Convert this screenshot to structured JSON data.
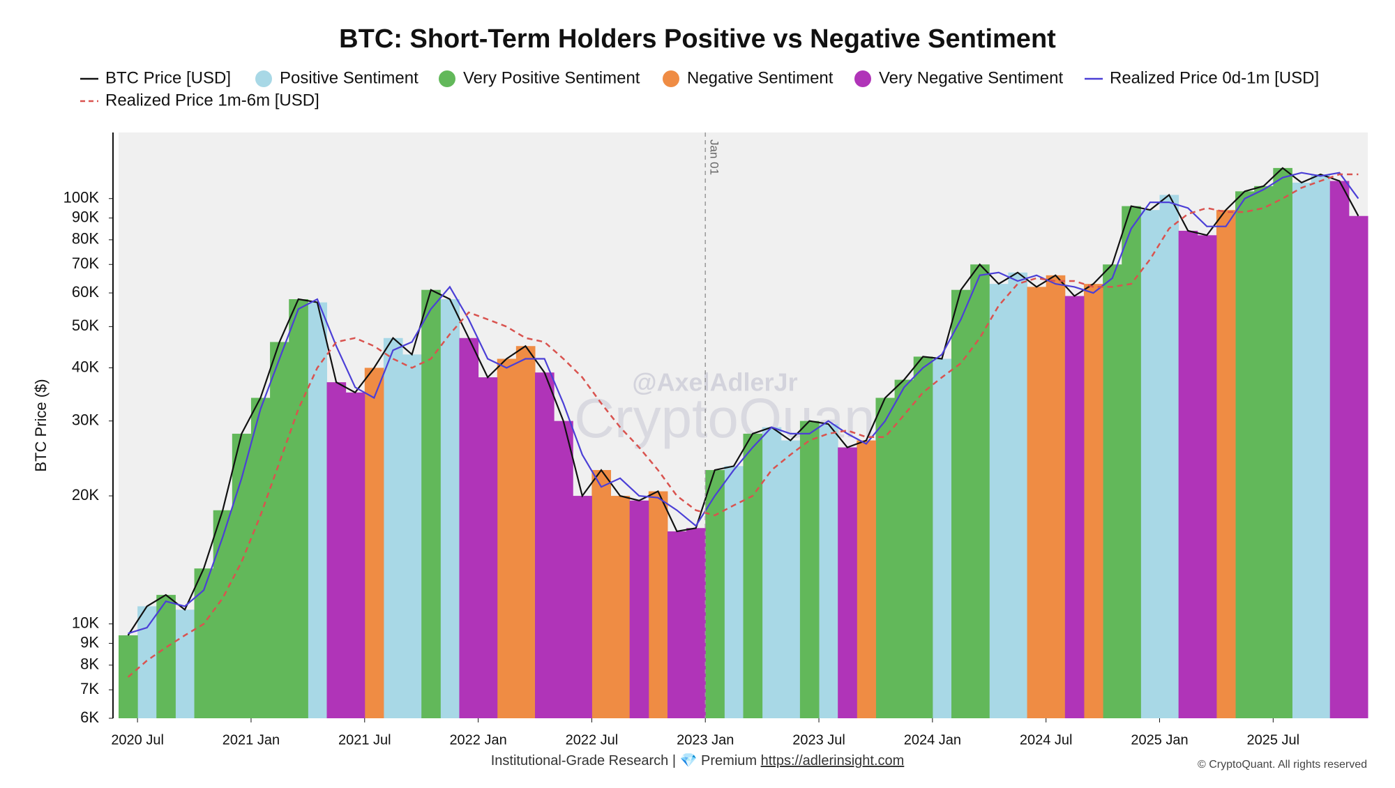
{
  "chart_data": {
    "type": "combo",
    "title": "BTC: Short-Term Holders Positive vs Negative Sentiment",
    "y_label": "BTC Price ($)",
    "log_y": true,
    "x": [
      "2020-06",
      "2020-07",
      "2020-08",
      "2020-09",
      "2020-10",
      "2020-11",
      "2020-12",
      "2021-01",
      "2021-02",
      "2021-03",
      "2021-04",
      "2021-05",
      "2021-06",
      "2021-07",
      "2021-08",
      "2021-09",
      "2021-10",
      "2021-11",
      "2021-12",
      "2022-01",
      "2022-02",
      "2022-03",
      "2022-04",
      "2022-05",
      "2022-06",
      "2022-07",
      "2022-08",
      "2022-09",
      "2022-10",
      "2022-11",
      "2022-12",
      "2023-01",
      "2023-02",
      "2023-03",
      "2023-04",
      "2023-05",
      "2023-06",
      "2023-07",
      "2023-08",
      "2023-09",
      "2023-10",
      "2023-11",
      "2023-12",
      "2024-01",
      "2024-02",
      "2024-03",
      "2024-04",
      "2024-05",
      "2024-06",
      "2024-07",
      "2024-08",
      "2024-09",
      "2024-10",
      "2024-11",
      "2024-12",
      "2025-01",
      "2025-02",
      "2025-03",
      "2025-04",
      "2025-05",
      "2025-06",
      "2025-07",
      "2025-08",
      "2025-09",
      "2025-10",
      "2025-11"
    ],
    "xlim": [
      "2020-06",
      "2025-12"
    ],
    "xticks": [
      {
        "value": "2020-07",
        "label": "2020 Jul"
      },
      {
        "value": "2021-01",
        "label": "2021 Jan"
      },
      {
        "value": "2021-07",
        "label": "2021 Jul"
      },
      {
        "value": "2022-01",
        "label": "2022 Jan"
      },
      {
        "value": "2022-07",
        "label": "2022 Jul"
      },
      {
        "value": "2023-01",
        "label": "2023 Jan"
      },
      {
        "value": "2023-07",
        "label": "2023 Jul"
      },
      {
        "value": "2024-01",
        "label": "2024 Jan"
      },
      {
        "value": "2024-07",
        "label": "2024 Jul"
      },
      {
        "value": "2025-01",
        "label": "2025 Jan"
      },
      {
        "value": "2025-07",
        "label": "2025 Jul"
      }
    ],
    "ylim": [
      6000,
      143000
    ],
    "yticks": [
      {
        "value": 6000,
        "label": "6K"
      },
      {
        "value": 7000,
        "label": "7K"
      },
      {
        "value": 8000,
        "label": "8K"
      },
      {
        "value": 9000,
        "label": "9K"
      },
      {
        "value": 10000,
        "label": "10K"
      },
      {
        "value": 20000,
        "label": "20K"
      },
      {
        "value": 30000,
        "label": "30K"
      },
      {
        "value": 40000,
        "label": "40K"
      },
      {
        "value": 50000,
        "label": "50K"
      },
      {
        "value": 60000,
        "label": "60K"
      },
      {
        "value": 70000,
        "label": "70K"
      },
      {
        "value": 80000,
        "label": "80K"
      },
      {
        "value": 90000,
        "label": "90K"
      },
      {
        "value": 100000,
        "label": "100K"
      }
    ],
    "annotations": [
      {
        "x": "2023-01",
        "label": "Jan 01"
      }
    ],
    "series": [
      {
        "name": "BTC Price [USD]",
        "type": "line",
        "color": "#111111",
        "values": [
          9400,
          11000,
          11700,
          10800,
          13500,
          18500,
          28000,
          34000,
          46000,
          58000,
          57000,
          37000,
          35000,
          40000,
          47000,
          43000,
          61000,
          58000,
          47000,
          38000,
          42000,
          45000,
          39000,
          30000,
          20000,
          23000,
          20000,
          19500,
          20500,
          16500,
          16800,
          23000,
          23500,
          28000,
          29000,
          27000,
          30000,
          29500,
          26000,
          27000,
          34000,
          37500,
          42500,
          42000,
          61000,
          70000,
          63000,
          67000,
          62000,
          66000,
          59000,
          63000,
          70000,
          96000,
          94000,
          102000,
          84000,
          82000,
          94000,
          104000,
          107000,
          118000,
          109000,
          114000,
          110000,
          91000
        ]
      },
      {
        "name": "Positive Sentiment",
        "type": "bar",
        "color": "#a8d8e6",
        "values": [
          null,
          11000,
          null,
          10800,
          null,
          null,
          null,
          null,
          null,
          null,
          57000,
          null,
          null,
          null,
          47000,
          43000,
          null,
          58000,
          null,
          null,
          null,
          null,
          null,
          null,
          null,
          null,
          null,
          null,
          null,
          null,
          null,
          null,
          23500,
          null,
          29000,
          27000,
          null,
          29500,
          null,
          null,
          null,
          null,
          null,
          42000,
          null,
          null,
          63000,
          67000,
          null,
          null,
          null,
          null,
          null,
          null,
          94000,
          102000,
          null,
          null,
          null,
          null,
          null,
          null,
          109000,
          114000,
          null,
          null
        ]
      },
      {
        "name": "Very Positive Sentiment",
        "type": "bar",
        "color": "#62b85a",
        "values": [
          9400,
          null,
          11700,
          null,
          13500,
          18500,
          28000,
          34000,
          46000,
          58000,
          null,
          null,
          null,
          null,
          null,
          null,
          61000,
          null,
          null,
          null,
          null,
          null,
          null,
          null,
          null,
          null,
          null,
          null,
          null,
          null,
          null,
          23000,
          null,
          28000,
          null,
          null,
          30000,
          null,
          null,
          null,
          34000,
          37500,
          42500,
          null,
          61000,
          70000,
          null,
          null,
          null,
          null,
          null,
          null,
          70000,
          96000,
          null,
          null,
          null,
          null,
          null,
          104000,
          107000,
          118000,
          null,
          null,
          null,
          null
        ]
      },
      {
        "name": "Negative Sentiment",
        "type": "bar",
        "color": "#ef8c44",
        "values": [
          null,
          null,
          null,
          null,
          null,
          null,
          null,
          null,
          null,
          null,
          null,
          null,
          null,
          40000,
          null,
          null,
          null,
          null,
          null,
          null,
          42000,
          45000,
          null,
          null,
          null,
          23000,
          20000,
          null,
          20500,
          null,
          null,
          null,
          null,
          null,
          null,
          null,
          null,
          null,
          null,
          27000,
          null,
          null,
          null,
          null,
          null,
          null,
          null,
          null,
          62000,
          66000,
          null,
          63000,
          null,
          null,
          null,
          null,
          null,
          null,
          94000,
          null,
          null,
          null,
          null,
          null,
          null,
          null
        ]
      },
      {
        "name": "Very Negative Sentiment",
        "type": "bar",
        "color": "#b034b8",
        "values": [
          null,
          null,
          null,
          null,
          null,
          null,
          null,
          null,
          null,
          null,
          null,
          37000,
          35000,
          null,
          null,
          null,
          null,
          null,
          47000,
          38000,
          null,
          null,
          39000,
          30000,
          20000,
          null,
          null,
          19500,
          null,
          16500,
          16800,
          null,
          null,
          null,
          null,
          null,
          null,
          null,
          26000,
          null,
          null,
          null,
          null,
          null,
          null,
          null,
          null,
          null,
          null,
          null,
          59000,
          null,
          null,
          null,
          null,
          null,
          84000,
          82000,
          null,
          null,
          null,
          null,
          null,
          null,
          110000,
          91000
        ]
      },
      {
        "name": "Realized Price 0d-1m [USD]",
        "type": "line",
        "color": "#4b3fd6",
        "values": [
          9500,
          9800,
          11300,
          11000,
          12000,
          16000,
          22000,
          32000,
          42000,
          55000,
          58000,
          45000,
          36000,
          34000,
          44000,
          46000,
          55000,
          62000,
          52000,
          42000,
          40000,
          42000,
          42000,
          33000,
          25000,
          21000,
          22000,
          20000,
          19800,
          18500,
          17000,
          20000,
          23000,
          26000,
          29000,
          28000,
          28000,
          30000,
          28000,
          26500,
          30000,
          36000,
          40000,
          43000,
          52000,
          66000,
          67000,
          64000,
          66000,
          63000,
          62000,
          60000,
          65000,
          85000,
          98000,
          98000,
          95000,
          86000,
          86000,
          100000,
          105000,
          112000,
          115000,
          113000,
          115000,
          100000
        ]
      },
      {
        "name": "Realized Price 1m-6m [USD]",
        "type": "line",
        "dash": true,
        "color": "#d9534f",
        "values": [
          7500,
          8200,
          8800,
          9400,
          10000,
          11500,
          14000,
          18000,
          24000,
          32000,
          40000,
          46000,
          47000,
          45000,
          42000,
          40000,
          42000,
          48000,
          54000,
          52000,
          50000,
          47000,
          46000,
          42000,
          38000,
          33000,
          29000,
          26000,
          23000,
          20000,
          18500,
          18000,
          19000,
          20000,
          23000,
          25000,
          27000,
          28000,
          28500,
          27500,
          27500,
          31000,
          35000,
          38000,
          41000,
          47000,
          56000,
          63000,
          65000,
          64000,
          64000,
          62000,
          62000,
          63000,
          72000,
          85000,
          92000,
          95000,
          93000,
          93000,
          95000,
          100000,
          106000,
          110000,
          114000,
          114000
        ]
      }
    ]
  },
  "watermark": {
    "handle": "@AxelAdlerJr",
    "brand": "CryptoQuant"
  },
  "footer": {
    "text": "Institutional-Grade Research | 💎 Premium",
    "link": "https://adlerinsight.com",
    "copyright": "© CryptoQuant. All rights reserved"
  }
}
